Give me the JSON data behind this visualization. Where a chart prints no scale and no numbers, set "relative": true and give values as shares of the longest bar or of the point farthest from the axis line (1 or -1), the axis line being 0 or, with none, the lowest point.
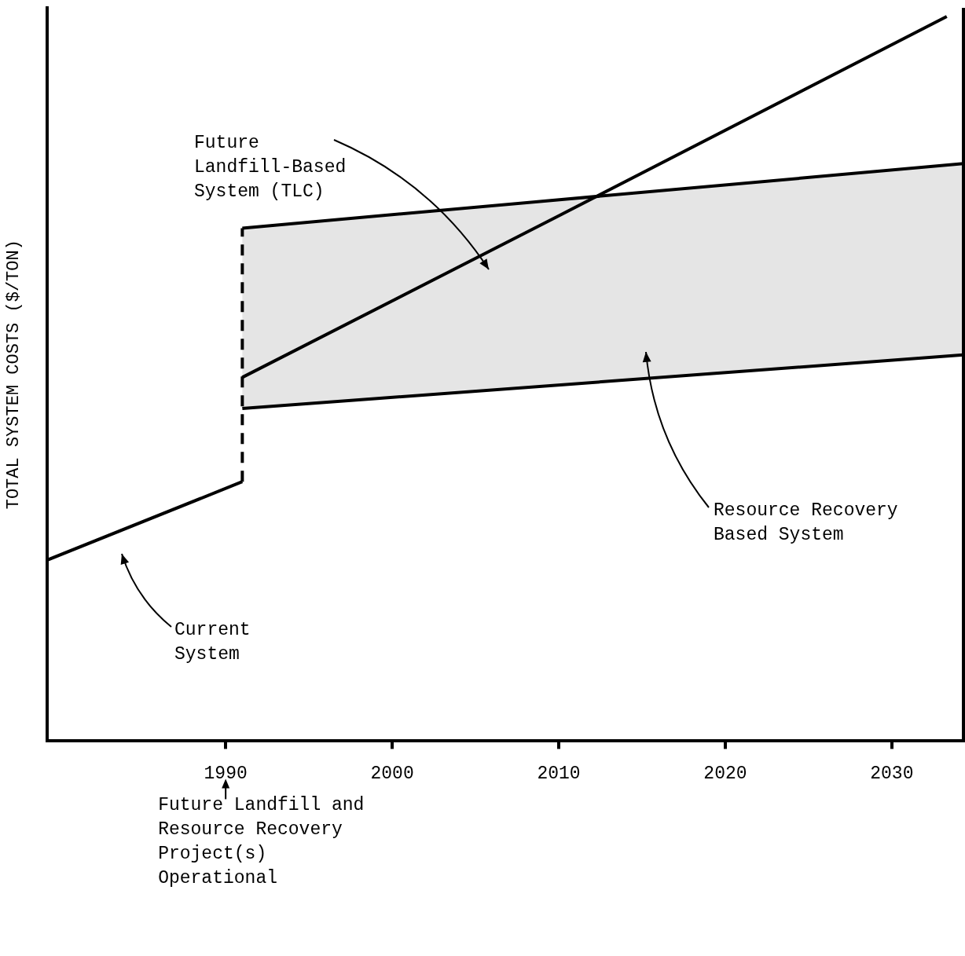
{
  "chart_data": {
    "type": "line",
    "ylabel": "TOTAL SYSTEM COSTS ($/TON)",
    "relative": true,
    "xlim": [
      1979.3,
      2034.3
    ],
    "xticks": [
      1990,
      2000,
      2010,
      2020,
      2030
    ],
    "grid": false,
    "legend": false,
    "marker": "none",
    "series": [
      {
        "color": "#000000",
        "x": [
          1979.3,
          1991
        ],
        "values": [
          0.25,
          0.358
        ]
      },
      {
        "color": "#000000",
        "x": [
          1991,
          1991
        ],
        "values": [
          0.358,
          0.708
        ],
        "line_style": "dashed"
      },
      {
        "color": "#000000",
        "x": [
          1991,
          2010,
          2033.3
        ],
        "values": [
          0.502,
          0.725,
          1.0
        ]
      },
      {
        "color": "#000000",
        "x": [
          1991,
          2034.3
        ],
        "values": [
          0.708,
          0.797
        ]
      },
      {
        "color": "#000000",
        "x": [
          1991,
          2034.3
        ],
        "values": [
          0.459,
          0.533
        ],
        "lower": [
          0.459,
          0.533
        ],
        "upper": [
          0.708,
          0.797
        ]
      }
    ],
    "annotations": [
      "Future Landfill-Based System (TLC)",
      "Resource Recovery Based System",
      "Current System",
      "Future Landfill and Resource Recovery Project(s) Operational"
    ]
  }
}
